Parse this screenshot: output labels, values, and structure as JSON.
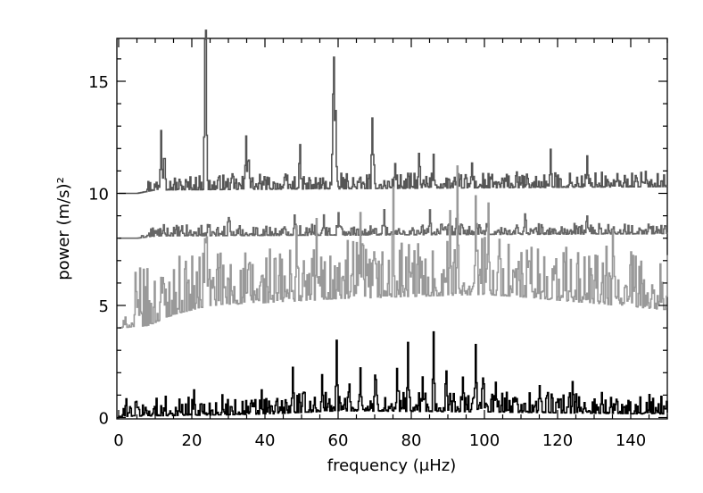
{
  "chart_data": {
    "type": "line",
    "title": "",
    "xlabel": "frequency (μHz)",
    "ylabel": "power (m/s)²",
    "xlim": [
      0,
      150
    ],
    "ylim": [
      0,
      17
    ],
    "x_ticks": [
      "0",
      "20",
      "40",
      "60",
      "80",
      "100",
      "120",
      "140"
    ],
    "y_ticks": [
      "0",
      "5",
      "10",
      "15"
    ],
    "grid": false,
    "legend": "none",
    "series": [
      {
        "offset": 10,
        "color": "#555555",
        "start_x": 5,
        "floor": [
          [
            5,
            0
          ],
          [
            10,
            0.15
          ],
          [
            150,
            0.3
          ]
        ],
        "noise_amp": 0.7,
        "peaks": [
          [
            11.5,
            2.6
          ],
          [
            12.3,
            1.4
          ],
          [
            23.6,
            6.7
          ],
          [
            34.8,
            2.3
          ],
          [
            35.5,
            1.3
          ],
          [
            49.5,
            1.3
          ],
          [
            58.6,
            4.2
          ],
          [
            59.2,
            2.8
          ],
          [
            69.3,
            2.5
          ],
          [
            75.5,
            1.1
          ],
          [
            82.0,
            1.2
          ],
          [
            86.0,
            1.0
          ],
          [
            96.5,
            1.0
          ],
          [
            118.0,
            1.0
          ],
          [
            128.0,
            1.0
          ]
        ]
      },
      {
        "offset": 8,
        "color": "#666666",
        "start_x": 5,
        "floor": [
          [
            5,
            0
          ],
          [
            10,
            0.1
          ],
          [
            150,
            0.2
          ]
        ],
        "noise_amp": 0.5,
        "peaks": [
          [
            30.0,
            0.8
          ],
          [
            48.0,
            0.9
          ],
          [
            56.0,
            0.9
          ],
          [
            60.0,
            1.0
          ],
          [
            72.5,
            1.1
          ],
          [
            85.0,
            1.1
          ],
          [
            92.5,
            0.9
          ],
          [
            111.0,
            0.9
          ],
          [
            128.0,
            0.8
          ]
        ]
      },
      {
        "offset": 4,
        "color": "#999999",
        "start_x": 0,
        "floor": [
          [
            0,
            0
          ],
          [
            8,
            0.1
          ],
          [
            15,
            0.6
          ],
          [
            25,
            1.0
          ],
          [
            60,
            1.3
          ],
          [
            100,
            1.5
          ],
          [
            130,
            1.1
          ],
          [
            150,
            0.8
          ]
        ],
        "noise_amp": 2.6,
        "peaks": [
          [
            11.5,
            1.6
          ],
          [
            23.5,
            3.0
          ],
          [
            24.0,
            2.5
          ],
          [
            48.5,
            2.8
          ],
          [
            54.0,
            2.7
          ],
          [
            66.0,
            2.6
          ],
          [
            75.0,
            2.6
          ],
          [
            90.5,
            3.4
          ],
          [
            92.5,
            3.2
          ],
          [
            97.5,
            3.6
          ],
          [
            101.0,
            2.8
          ],
          [
            135.0,
            1.8
          ]
        ]
      },
      {
        "offset": 0,
        "color": "#000000",
        "start_x": 0,
        "floor": [
          [
            0,
            0.05
          ],
          [
            40,
            0.15
          ],
          [
            60,
            0.3
          ],
          [
            100,
            0.25
          ],
          [
            150,
            0.15
          ]
        ],
        "noise_amp": 0.9,
        "peaks": [
          [
            20.5,
            0.7
          ],
          [
            39.0,
            0.6
          ],
          [
            47.5,
            1.7
          ],
          [
            55.5,
            1.2
          ],
          [
            59.5,
            3.0
          ],
          [
            63.0,
            1.1
          ],
          [
            66.0,
            1.8
          ],
          [
            70.0,
            1.6
          ],
          [
            76.0,
            1.1
          ],
          [
            79.0,
            2.7
          ],
          [
            83.0,
            1.3
          ],
          [
            86.0,
            3.5
          ],
          [
            89.5,
            1.7
          ],
          [
            94.0,
            1.4
          ],
          [
            97.5,
            3.0
          ],
          [
            99.5,
            1.5
          ],
          [
            103.0,
            1.3
          ],
          [
            115.0,
            1.2
          ],
          [
            124.0,
            0.8
          ],
          [
            132.0,
            0.6
          ]
        ]
      }
    ]
  }
}
